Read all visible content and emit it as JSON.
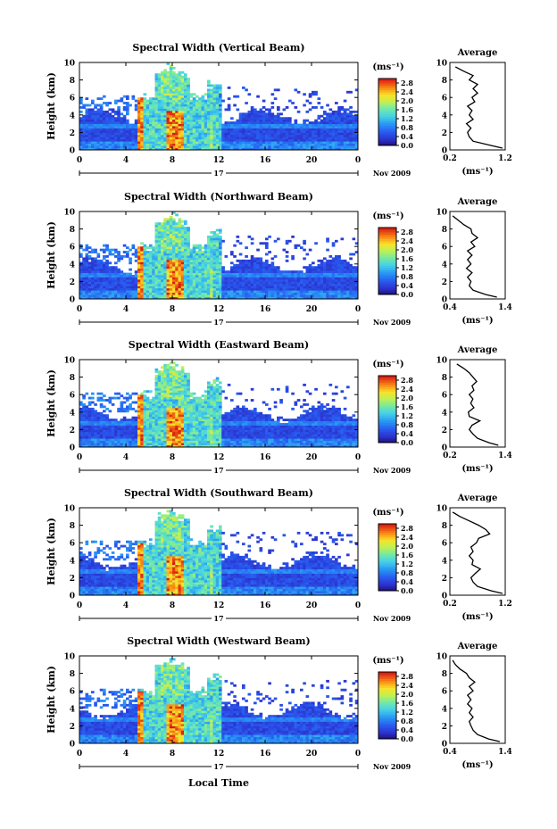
{
  "chart_data": [
    {
      "type": "heatmap",
      "title": "Spectral Width (Vertical Beam)",
      "ylabel": "Height (km)",
      "xticks": [
        "0",
        "4",
        "8",
        "12",
        "16",
        "20",
        "0"
      ],
      "yticks": [
        "0",
        "2",
        "4",
        "6",
        "8",
        "10"
      ],
      "xlim": [
        0,
        24
      ],
      "ylim": [
        0,
        10
      ],
      "date_day": "17",
      "date_month": "Nov 2009",
      "colorbar_unit": "(ms⁻¹)",
      "colorbar_ticks": [
        "0.0",
        "0.4",
        "0.8",
        "1.2",
        "1.6",
        "2.0",
        "2.4",
        "2.8"
      ],
      "avg_title": "Average",
      "avg_xticks": [
        "0.2",
        "1.2"
      ],
      "avg_xlim": [
        0.2,
        1.2
      ],
      "avg_xlabel": "(ms⁻¹)",
      "avg_profile": {
        "height": [
          0.2,
          0.5,
          1.0,
          1.5,
          2.0,
          2.5,
          3.0,
          3.5,
          4.0,
          4.5,
          5.0,
          5.5,
          6.0,
          6.5,
          7.0,
          7.5,
          8.0,
          8.5,
          9.0,
          9.5
        ],
        "width": [
          1.15,
          0.95,
          0.62,
          0.55,
          0.52,
          0.58,
          0.5,
          0.62,
          0.55,
          0.6,
          0.52,
          0.65,
          0.6,
          0.7,
          0.62,
          0.7,
          0.55,
          0.62,
          0.45,
          0.3
        ]
      }
    },
    {
      "type": "heatmap",
      "title": "Spectral Width (Northward Beam)",
      "ylabel": "Height (km)",
      "xticks": [
        "0",
        "4",
        "8",
        "12",
        "16",
        "20",
        "0"
      ],
      "yticks": [
        "0",
        "2",
        "4",
        "6",
        "8",
        "10"
      ],
      "xlim": [
        0,
        24
      ],
      "ylim": [
        0,
        10
      ],
      "date_day": "17",
      "date_month": "Nov 2009",
      "colorbar_unit": "(ms⁻¹)",
      "colorbar_ticks": [
        "0.0",
        "0.4",
        "0.8",
        "1.2",
        "1.6",
        "2.0",
        "2.4",
        "2.8"
      ],
      "avg_title": "Average",
      "avg_xticks": [
        "0.4",
        "1.4"
      ],
      "avg_xlim": [
        0.4,
        1.4
      ],
      "avg_xlabel": "(ms⁻¹)",
      "avg_profile": {
        "height": [
          0.2,
          0.5,
          1.0,
          1.5,
          2.0,
          2.5,
          3.0,
          3.5,
          4.0,
          4.5,
          5.0,
          5.5,
          6.0,
          6.5,
          7.0,
          7.5,
          8.0,
          8.5,
          9.0,
          9.5
        ],
        "width": [
          1.25,
          1.05,
          0.82,
          0.75,
          0.78,
          0.72,
          0.8,
          0.7,
          0.78,
          0.72,
          0.8,
          0.72,
          0.85,
          0.78,
          0.9,
          0.8,
          0.78,
          0.65,
          0.55,
          0.45
        ]
      }
    },
    {
      "type": "heatmap",
      "title": "Spectral Width (Eastward Beam)",
      "ylabel": "Height (km)",
      "xticks": [
        "0",
        "4",
        "8",
        "12",
        "16",
        "20",
        "0"
      ],
      "yticks": [
        "0",
        "2",
        "4",
        "6",
        "8",
        "10"
      ],
      "xlim": [
        0,
        24
      ],
      "ylim": [
        0,
        10
      ],
      "date_day": "17",
      "date_month": "Nov 2009",
      "colorbar_unit": "(ms⁻¹)",
      "colorbar_ticks": [
        "0.0",
        "0.4",
        "0.8",
        "1.2",
        "1.6",
        "2.0",
        "2.4",
        "2.8"
      ],
      "avg_title": "Average",
      "avg_xticks": [
        "0.2",
        "1.4"
      ],
      "avg_xlim": [
        0.2,
        1.4
      ],
      "avg_xlabel": "(ms⁻¹)",
      "avg_profile": {
        "height": [
          0.2,
          0.5,
          1.0,
          1.5,
          2.0,
          2.5,
          3.0,
          3.5,
          4.0,
          4.5,
          5.0,
          5.5,
          6.0,
          6.5,
          7.0,
          7.5,
          8.0,
          8.5,
          9.0,
          9.5
        ],
        "width": [
          1.25,
          1.05,
          0.8,
          0.7,
          0.62,
          0.68,
          0.85,
          0.62,
          0.6,
          0.72,
          0.65,
          0.7,
          0.62,
          0.72,
          0.68,
          0.78,
          0.7,
          0.62,
          0.5,
          0.35
        ]
      }
    },
    {
      "type": "heatmap",
      "title": "Spectral Width (Southward Beam)",
      "ylabel": "Height (km)",
      "xticks": [
        "0",
        "4",
        "8",
        "12",
        "16",
        "20",
        "0"
      ],
      "yticks": [
        "0",
        "2",
        "4",
        "6",
        "8",
        "10"
      ],
      "xlim": [
        0,
        24
      ],
      "ylim": [
        0,
        10
      ],
      "date_day": "17",
      "date_month": "Nov 2009",
      "colorbar_unit": "(ms⁻¹)",
      "colorbar_ticks": [
        "0.0",
        "0.4",
        "0.8",
        "1.2",
        "1.6",
        "2.0",
        "2.4",
        "2.8"
      ],
      "avg_title": "Average",
      "avg_xticks": [
        "0.2",
        "1.2"
      ],
      "avg_xlim": [
        0.2,
        1.2
      ],
      "avg_xlabel": "(ms⁻¹)",
      "avg_profile": {
        "height": [
          0.2,
          0.5,
          1.0,
          1.5,
          2.0,
          2.5,
          3.0,
          3.5,
          4.0,
          4.5,
          5.0,
          5.5,
          6.0,
          6.5,
          7.0,
          7.5,
          8.0,
          8.5,
          9.0,
          9.5
        ],
        "width": [
          1.15,
          0.95,
          0.7,
          0.62,
          0.58,
          0.66,
          0.75,
          0.6,
          0.62,
          0.55,
          0.62,
          0.58,
          0.68,
          0.72,
          0.92,
          0.85,
          0.72,
          0.55,
          0.38,
          0.25
        ]
      }
    },
    {
      "type": "heatmap",
      "title": "Spectral Width (Westward Beam)",
      "ylabel": "Height (km)",
      "xlabel": "Local Time",
      "xticks": [
        "0",
        "4",
        "8",
        "12",
        "16",
        "20",
        "0"
      ],
      "yticks": [
        "0",
        "2",
        "4",
        "6",
        "8",
        "10"
      ],
      "xlim": [
        0,
        24
      ],
      "ylim": [
        0,
        10
      ],
      "date_day": "17",
      "date_month": "Nov 2009",
      "colorbar_unit": "(ms⁻¹)",
      "colorbar_ticks": [
        "0.0",
        "0.4",
        "0.8",
        "1.2",
        "1.6",
        "2.0",
        "2.4",
        "2.8"
      ],
      "avg_title": "Average",
      "avg_xticks": [
        "0.4",
        "1.4"
      ],
      "avg_xlim": [
        0.4,
        1.4
      ],
      "avg_xlabel": "(ms⁻¹)",
      "avg_profile": {
        "height": [
          0.2,
          0.5,
          1.0,
          1.5,
          2.0,
          2.5,
          3.0,
          3.5,
          4.0,
          4.5,
          5.0,
          5.5,
          6.0,
          6.5,
          7.0,
          7.5,
          8.0,
          8.5,
          9.0,
          9.5
        ],
        "width": [
          1.3,
          1.1,
          0.9,
          0.82,
          0.78,
          0.75,
          0.82,
          0.75,
          0.8,
          0.72,
          0.78,
          0.72,
          0.82,
          0.75,
          0.85,
          0.75,
          0.7,
          0.58,
          0.5,
          0.45
        ]
      }
    }
  ]
}
